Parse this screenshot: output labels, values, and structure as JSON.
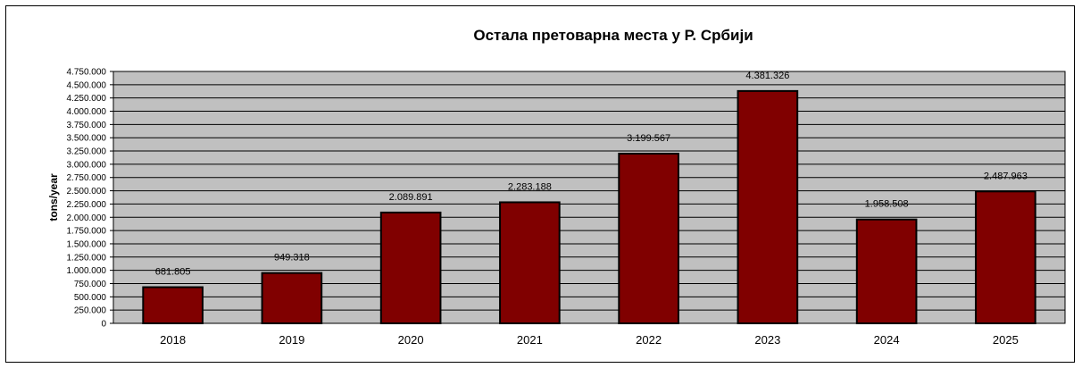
{
  "chart_data": {
    "type": "bar",
    "title": "Остала претоварна  места у Р. Србији",
    "xlabel": "",
    "ylabel": "tons/year",
    "categories": [
      "2018",
      "2019",
      "2020",
      "2021",
      "2022",
      "2023",
      "2024",
      "2025"
    ],
    "values": [
      681805,
      949318,
      2089891,
      2283188,
      3199567,
      4381326,
      1958508,
      2487963
    ],
    "value_labels": [
      "681.805",
      "949.318",
      "2.089.891",
      "2.283.188",
      "3.199.567",
      "4.381.326",
      "1.958.508",
      "2.487.963"
    ],
    "ylim": [
      0,
      4750000
    ],
    "yticks": [
      0,
      250000,
      500000,
      750000,
      1000000,
      1250000,
      1500000,
      1750000,
      2000000,
      2250000,
      2500000,
      2750000,
      3000000,
      3250000,
      3500000,
      3750000,
      4000000,
      4250000,
      4500000,
      4750000
    ],
    "ytick_labels": [
      "0",
      "250.000",
      "500.000",
      "750.000",
      "1.000.000",
      "1.250.000",
      "1.500.000",
      "1.750.000",
      "2.000.000",
      "2.250.000",
      "2.500.000",
      "2.750.000",
      "3.000.000",
      "3.250.000",
      "3.500.000",
      "3.750.000",
      "4.000.000",
      "4.250.000",
      "4.500.000",
      "4.750.000"
    ],
    "grid": true,
    "legend": "none",
    "colors": {
      "bar": "#800000",
      "plot_background": "#c0c0c0",
      "gridline": "#000000"
    }
  }
}
